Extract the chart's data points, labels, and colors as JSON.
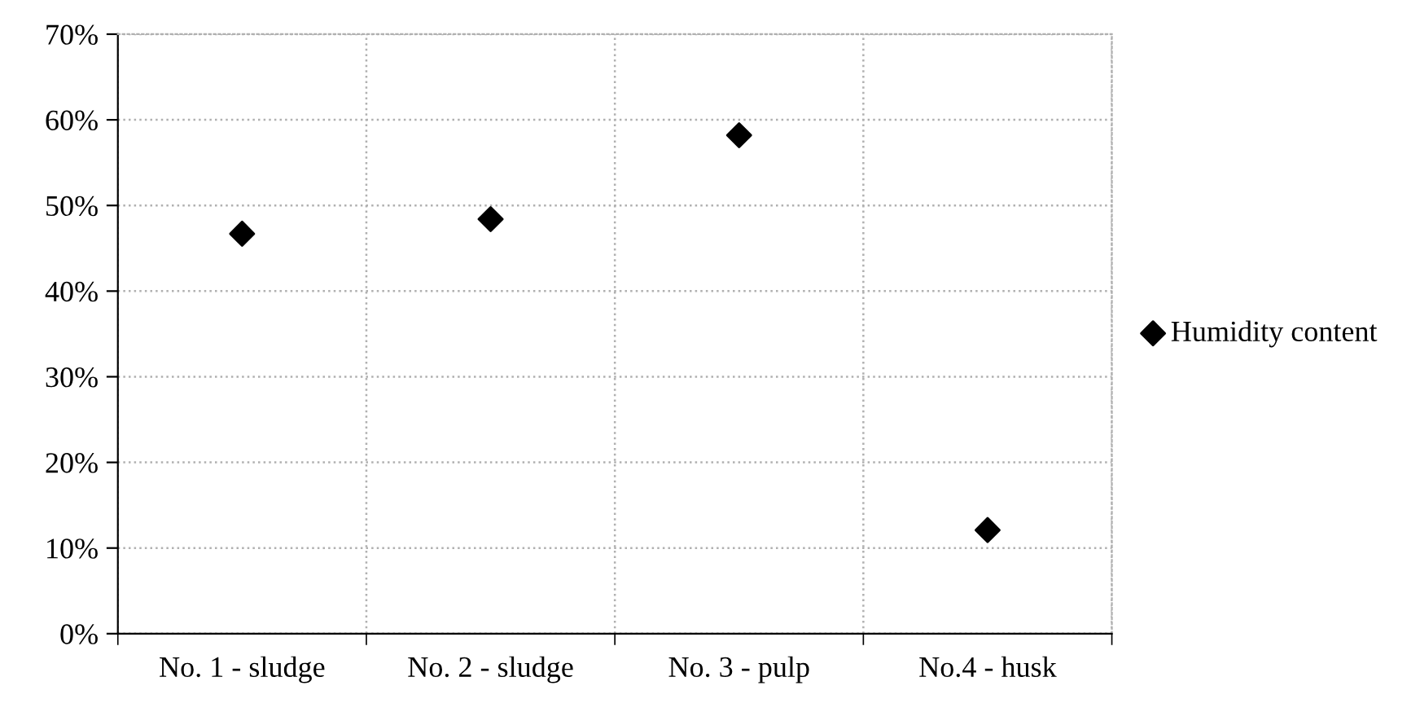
{
  "chart_data": {
    "type": "scatter",
    "categories": [
      "No. 1 - sludge",
      "No. 2 - sludge",
      "No. 3 - pulp",
      "No.4 - husk"
    ],
    "series": [
      {
        "name": "Humidity content",
        "color": "#000000",
        "values": [
          0.467,
          0.484,
          0.582,
          0.121
        ]
      }
    ],
    "ylim": [
      0,
      0.7
    ],
    "yticks": [
      {
        "value": 0,
        "label": "0%"
      },
      {
        "value": 0.1,
        "label": "10%"
      },
      {
        "value": 0.2,
        "label": "20%"
      },
      {
        "value": 0.3,
        "label": "30%"
      },
      {
        "value": 0.4,
        "label": "40%"
      },
      {
        "value": 0.5,
        "label": "50%"
      },
      {
        "value": 0.6,
        "label": "60%"
      },
      {
        "value": 0.7,
        "label": "70%"
      }
    ],
    "grid": true,
    "legend": "right",
    "marker": "diamond"
  }
}
